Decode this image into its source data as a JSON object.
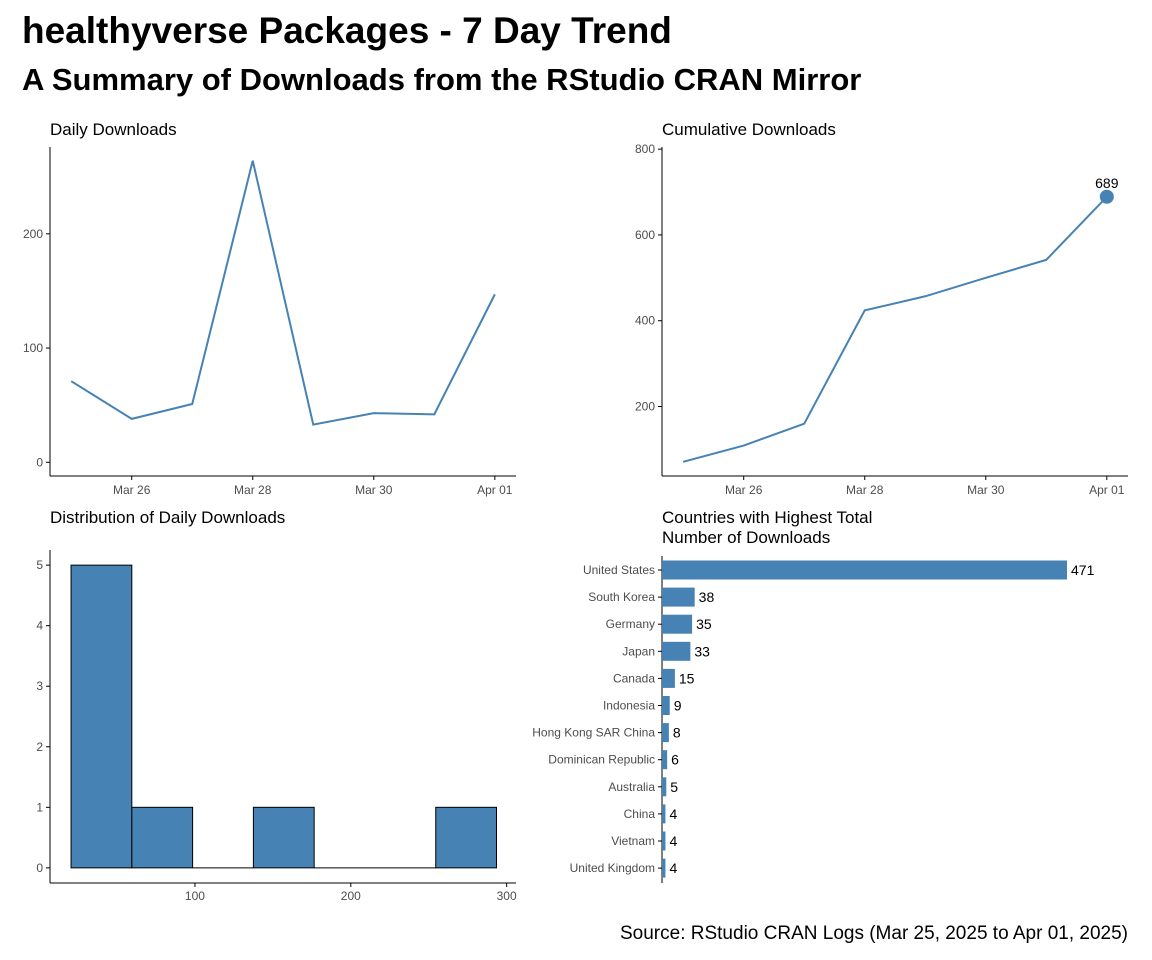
{
  "title": "healthyverse Packages - 7 Day Trend",
  "subtitle": "A Summary of Downloads from the RStudio CRAN Mirror",
  "caption": "Source: RStudio CRAN Logs (Mar 25, 2025 to Apr 01, 2025)",
  "colors": {
    "accent": "#4682b4",
    "axis": "#000000",
    "tick_text": "#4d4d4d"
  },
  "chart_data": [
    {
      "id": "daily",
      "type": "line",
      "title": "Daily Downloads",
      "x": [
        "2025-03-25",
        "2025-03-26",
        "2025-03-27",
        "2025-03-28",
        "2025-03-29",
        "2025-03-30",
        "2025-03-31",
        "2025-04-01"
      ],
      "values": [
        71,
        38,
        51,
        264,
        33,
        43,
        42,
        147
      ],
      "xticks": [
        "Mar 26",
        "Mar 28",
        "Mar 30",
        "Apr 01"
      ],
      "yticks": [
        0,
        100,
        200
      ],
      "ylim": [
        -12,
        276
      ]
    },
    {
      "id": "cumulative",
      "type": "line",
      "title": "Cumulative Downloads",
      "x": [
        "2025-03-25",
        "2025-03-26",
        "2025-03-27",
        "2025-03-28",
        "2025-03-29",
        "2025-03-30",
        "2025-03-31",
        "2025-04-01"
      ],
      "values": [
        71,
        109,
        160,
        424,
        457,
        500,
        542,
        689
      ],
      "end_label": "689",
      "xticks": [
        "Mar 26",
        "Mar 28",
        "Mar 30",
        "Apr 01"
      ],
      "yticks": [
        200,
        400,
        600,
        800
      ],
      "ylim": [
        38,
        805
      ]
    },
    {
      "id": "histogram",
      "type": "bar",
      "title": "Distribution of Daily Downloads",
      "bins": [
        {
          "start": 20.5,
          "end": 59.5,
          "count": 5
        },
        {
          "start": 59.5,
          "end": 98.5,
          "count": 1
        },
        {
          "start": 98.5,
          "end": 137.5,
          "count": 0
        },
        {
          "start": 137.5,
          "end": 176.5,
          "count": 1
        },
        {
          "start": 176.5,
          "end": 215.5,
          "count": 0
        },
        {
          "start": 215.5,
          "end": 254.5,
          "count": 0
        },
        {
          "start": 254.5,
          "end": 293.5,
          "count": 1
        }
      ],
      "xticks": [
        100,
        200,
        300
      ],
      "yticks": [
        0,
        1,
        2,
        3,
        4,
        5
      ],
      "xlim": [
        7,
        306
      ],
      "ylim": [
        -0.25,
        5.25
      ]
    },
    {
      "id": "countries",
      "type": "bar",
      "orientation": "horizontal",
      "title_lines": [
        "Countries with Highest Total",
        "Number of Downloads"
      ],
      "categories": [
        "United States",
        "South Korea",
        "Germany",
        "Japan",
        "Canada",
        "Indonesia",
        "Hong Kong SAR China",
        "Dominican Republic",
        "Australia",
        "China",
        "Vietnam",
        "United Kingdom"
      ],
      "values": [
        471,
        38,
        35,
        33,
        15,
        9,
        8,
        6,
        5,
        4,
        4,
        4
      ],
      "xlim": [
        0,
        471
      ]
    }
  ]
}
